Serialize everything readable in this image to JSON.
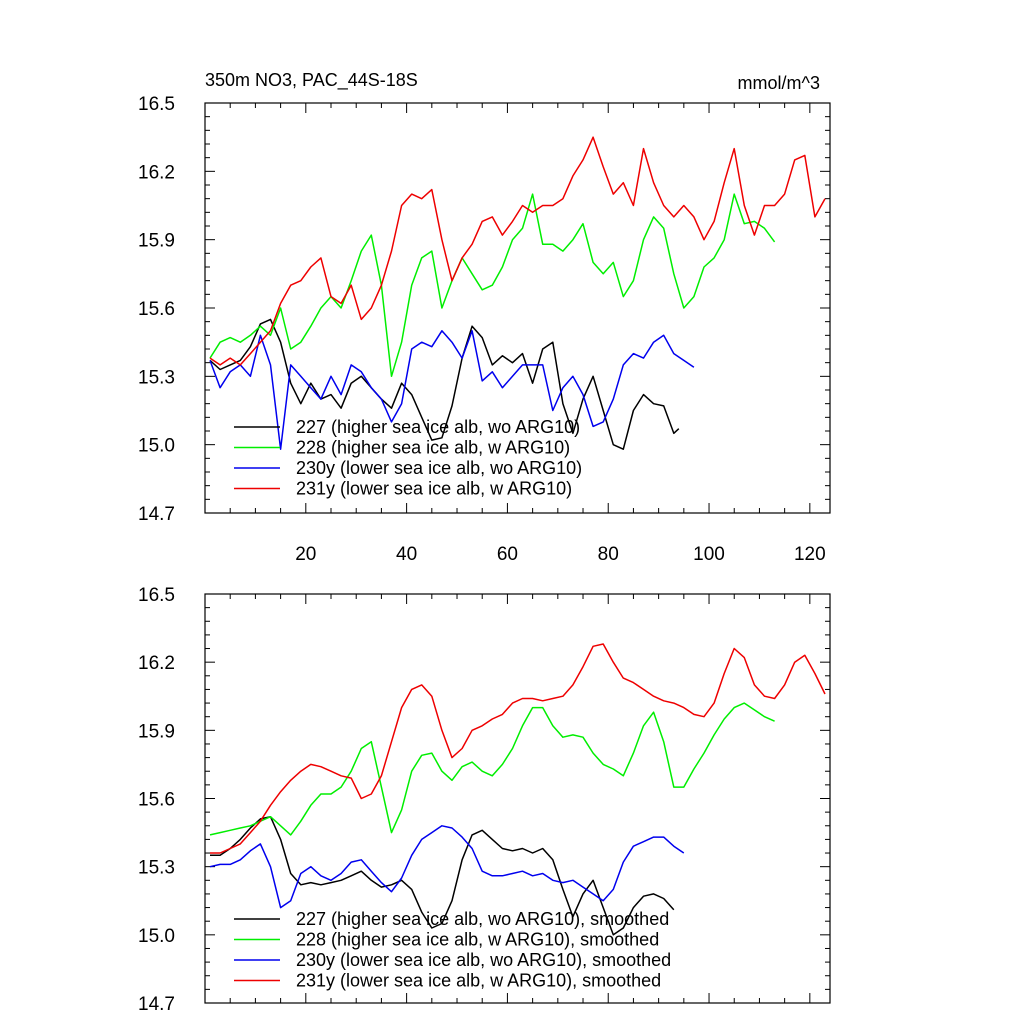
{
  "chart_data": [
    {
      "type": "line",
      "title": "350m NO3, PAC_44S-18S",
      "units": "mmol/m^3",
      "xlim": [
        0,
        124
      ],
      "ylim": [
        14.7,
        16.5
      ],
      "yticks": [
        14.7,
        15.0,
        15.3,
        15.6,
        15.9,
        16.2,
        16.5
      ],
      "xticks": [
        20,
        40,
        60,
        80,
        100,
        120
      ],
      "xticks_labeled": true,
      "legend_position": "bottom-left",
      "series": [
        {
          "name": "227 (higher sea ice alb, wo ARG10)",
          "color": "#000000",
          "x": [
            1,
            3,
            5,
            7,
            9,
            11,
            13,
            15,
            17,
            19,
            21,
            23,
            25,
            27,
            29,
            31,
            33,
            35,
            37,
            39,
            41,
            43,
            45,
            47,
            49,
            51,
            53,
            55,
            57,
            59,
            61,
            63,
            65,
            67,
            69,
            71,
            73,
            75,
            77,
            79,
            81,
            83,
            85,
            87,
            89,
            91,
            93,
            94
          ],
          "values": [
            15.37,
            15.33,
            15.35,
            15.37,
            15.43,
            15.53,
            15.55,
            15.45,
            15.27,
            15.18,
            15.27,
            15.2,
            15.22,
            15.16,
            15.27,
            15.3,
            15.25,
            15.2,
            15.16,
            15.27,
            15.22,
            15.12,
            15.02,
            15.03,
            15.17,
            15.38,
            15.52,
            15.47,
            15.35,
            15.39,
            15.36,
            15.4,
            15.27,
            15.42,
            15.45,
            15.18,
            15.05,
            15.2,
            15.3,
            15.15,
            15.0,
            14.98,
            15.15,
            15.22,
            15.18,
            15.17,
            15.05,
            15.07
          ]
        },
        {
          "name": "228 (higher sea ice alb, w ARG10)",
          "color": "#00ee00",
          "x": [
            1,
            3,
            5,
            7,
            9,
            11,
            13,
            15,
            17,
            19,
            21,
            23,
            25,
            27,
            29,
            31,
            33,
            35,
            37,
            39,
            41,
            43,
            45,
            47,
            49,
            51,
            53,
            55,
            57,
            59,
            61,
            63,
            65,
            67,
            69,
            71,
            73,
            75,
            77,
            79,
            81,
            83,
            85,
            87,
            89,
            91,
            93,
            95,
            97,
            99,
            101,
            103,
            105,
            107,
            109,
            111,
            113
          ],
          "values": [
            15.38,
            15.45,
            15.47,
            15.45,
            15.48,
            15.52,
            15.48,
            15.6,
            15.42,
            15.45,
            15.52,
            15.6,
            15.65,
            15.6,
            15.72,
            15.85,
            15.92,
            15.7,
            15.3,
            15.45,
            15.7,
            15.82,
            15.85,
            15.6,
            15.72,
            15.82,
            15.75,
            15.68,
            15.7,
            15.78,
            15.9,
            15.95,
            16.1,
            15.88,
            15.88,
            15.85,
            15.9,
            15.97,
            15.8,
            15.75,
            15.8,
            15.65,
            15.72,
            15.9,
            16.0,
            15.95,
            15.75,
            15.6,
            15.65,
            15.78,
            15.82,
            15.9,
            16.1,
            15.97,
            15.98,
            15.95,
            15.89
          ]
        },
        {
          "name": "230y (lower sea ice alb, wo ARG10)",
          "color": "#0000ee",
          "x": [
            1,
            3,
            5,
            7,
            9,
            11,
            13,
            15,
            17,
            19,
            21,
            23,
            25,
            27,
            29,
            31,
            33,
            35,
            37,
            39,
            41,
            43,
            45,
            47,
            49,
            51,
            53,
            55,
            57,
            59,
            61,
            63,
            65,
            67,
            69,
            71,
            73,
            75,
            77,
            79,
            81,
            83,
            85,
            87,
            89,
            91,
            93,
            95,
            97
          ],
          "values": [
            15.37,
            15.25,
            15.32,
            15.35,
            15.3,
            15.48,
            15.35,
            14.98,
            15.35,
            15.3,
            15.25,
            15.2,
            15.3,
            15.22,
            15.35,
            15.32,
            15.25,
            15.2,
            15.1,
            15.18,
            15.42,
            15.45,
            15.43,
            15.5,
            15.45,
            15.38,
            15.5,
            15.28,
            15.32,
            15.25,
            15.3,
            15.35,
            15.35,
            15.35,
            15.15,
            15.25,
            15.3,
            15.22,
            15.08,
            15.1,
            15.2,
            15.35,
            15.4,
            15.38,
            15.45,
            15.48,
            15.4,
            15.37,
            15.34
          ]
        },
        {
          "name": "231y (lower sea ice alb, w ARG10)",
          "color": "#ee0000",
          "x": [
            1,
            3,
            5,
            7,
            9,
            11,
            13,
            15,
            17,
            19,
            21,
            23,
            25,
            27,
            29,
            31,
            33,
            35,
            37,
            39,
            41,
            43,
            45,
            47,
            49,
            51,
            53,
            55,
            57,
            59,
            61,
            63,
            65,
            67,
            69,
            71,
            73,
            75,
            77,
            79,
            81,
            83,
            85,
            87,
            89,
            91,
            93,
            95,
            97,
            99,
            101,
            103,
            105,
            107,
            109,
            111,
            113,
            115,
            117,
            119,
            121,
            123
          ],
          "values": [
            15.38,
            15.35,
            15.38,
            15.35,
            15.4,
            15.45,
            15.5,
            15.62,
            15.7,
            15.72,
            15.78,
            15.82,
            15.65,
            15.62,
            15.7,
            15.55,
            15.6,
            15.7,
            15.85,
            16.05,
            16.1,
            16.08,
            16.12,
            15.9,
            15.72,
            15.82,
            15.88,
            15.98,
            16.0,
            15.92,
            15.98,
            16.05,
            16.02,
            16.05,
            16.05,
            16.08,
            16.18,
            16.25,
            16.35,
            16.22,
            16.1,
            16.15,
            16.05,
            16.3,
            16.15,
            16.05,
            16.0,
            16.05,
            16.0,
            15.9,
            15.98,
            16.15,
            16.3,
            16.05,
            15.92,
            16.05,
            16.05,
            16.1,
            16.25,
            16.27,
            16.0,
            16.08
          ]
        }
      ]
    },
    {
      "type": "line",
      "xlim": [
        0,
        124
      ],
      "ylim": [
        14.7,
        16.5
      ],
      "yticks": [
        14.7,
        15.0,
        15.3,
        15.6,
        15.9,
        16.2,
        16.5
      ],
      "xticks": [
        20,
        40,
        60,
        80,
        100,
        120
      ],
      "xticks_labeled": false,
      "legend_position": "bottom-left",
      "series": [
        {
          "name": "227 (higher sea ice alb, wo ARG10), smoothed",
          "color": "#000000",
          "x": [
            1,
            3,
            5,
            7,
            9,
            11,
            13,
            15,
            17,
            19,
            21,
            23,
            25,
            27,
            29,
            31,
            33,
            35,
            37,
            39,
            41,
            43,
            45,
            47,
            49,
            51,
            53,
            55,
            57,
            59,
            61,
            63,
            65,
            67,
            69,
            71,
            73,
            75,
            77,
            79,
            81,
            83,
            85,
            87,
            89,
            91,
            93
          ],
          "values": [
            15.35,
            15.35,
            15.38,
            15.42,
            15.47,
            15.51,
            15.52,
            15.42,
            15.27,
            15.22,
            15.23,
            15.22,
            15.23,
            15.24,
            15.26,
            15.28,
            15.24,
            15.21,
            15.22,
            15.24,
            15.2,
            15.1,
            15.03,
            15.05,
            15.15,
            15.33,
            15.44,
            15.46,
            15.42,
            15.38,
            15.37,
            15.38,
            15.36,
            15.38,
            15.33,
            15.2,
            15.08,
            15.18,
            15.24,
            15.12,
            15.0,
            15.03,
            15.12,
            15.17,
            15.18,
            15.16,
            15.11
          ]
        },
        {
          "name": "228 (higher sea ice alb, w ARG10), smoothed",
          "color": "#00ee00",
          "x": [
            1,
            3,
            5,
            7,
            9,
            11,
            13,
            15,
            17,
            19,
            21,
            23,
            25,
            27,
            29,
            31,
            33,
            35,
            37,
            39,
            41,
            43,
            45,
            47,
            49,
            51,
            53,
            55,
            57,
            59,
            61,
            63,
            65,
            67,
            69,
            71,
            73,
            75,
            77,
            79,
            81,
            83,
            85,
            87,
            89,
            91,
            93,
            95,
            97,
            99,
            101,
            103,
            105,
            107,
            109,
            111,
            113
          ],
          "values": [
            15.44,
            15.45,
            15.46,
            15.47,
            15.48,
            15.5,
            15.52,
            15.48,
            15.44,
            15.5,
            15.57,
            15.62,
            15.62,
            15.65,
            15.72,
            15.82,
            15.85,
            15.65,
            15.45,
            15.55,
            15.72,
            15.79,
            15.8,
            15.72,
            15.68,
            15.74,
            15.76,
            15.72,
            15.7,
            15.75,
            15.82,
            15.92,
            16.0,
            16.0,
            15.92,
            15.87,
            15.88,
            15.87,
            15.8,
            15.75,
            15.73,
            15.7,
            15.8,
            15.92,
            15.98,
            15.85,
            15.65,
            15.65,
            15.73,
            15.8,
            15.88,
            15.95,
            16.0,
            16.02,
            15.99,
            15.96,
            15.94
          ]
        },
        {
          "name": "230y (lower sea ice alb, wo ARG10), smoothed",
          "color": "#0000ee",
          "x": [
            1,
            3,
            5,
            7,
            9,
            11,
            13,
            15,
            17,
            19,
            21,
            23,
            25,
            27,
            29,
            31,
            33,
            35,
            37,
            39,
            41,
            43,
            45,
            47,
            49,
            51,
            53,
            55,
            57,
            59,
            61,
            63,
            65,
            67,
            69,
            71,
            73,
            75,
            77,
            79,
            81,
            83,
            85,
            87,
            89,
            91,
            93,
            95
          ],
          "values": [
            15.3,
            15.31,
            15.31,
            15.33,
            15.37,
            15.4,
            15.3,
            15.12,
            15.15,
            15.27,
            15.3,
            15.26,
            15.24,
            15.27,
            15.32,
            15.33,
            15.28,
            15.23,
            15.19,
            15.25,
            15.35,
            15.42,
            15.45,
            15.48,
            15.47,
            15.43,
            15.38,
            15.28,
            15.26,
            15.26,
            15.27,
            15.28,
            15.26,
            15.27,
            15.24,
            15.23,
            15.24,
            15.21,
            15.18,
            15.15,
            15.2,
            15.32,
            15.39,
            15.41,
            15.43,
            15.43,
            15.39,
            15.36
          ]
        },
        {
          "name": "231y (lower sea ice alb, w ARG10), smoothed",
          "color": "#ee0000",
          "x": [
            1,
            3,
            5,
            7,
            9,
            11,
            13,
            15,
            17,
            19,
            21,
            23,
            25,
            27,
            29,
            31,
            33,
            35,
            37,
            39,
            41,
            43,
            45,
            47,
            49,
            51,
            53,
            55,
            57,
            59,
            61,
            63,
            65,
            67,
            69,
            71,
            73,
            75,
            77,
            79,
            81,
            83,
            85,
            87,
            89,
            91,
            93,
            95,
            97,
            99,
            101,
            103,
            105,
            107,
            109,
            111,
            113,
            115,
            117,
            119,
            121,
            123
          ],
          "values": [
            15.36,
            15.36,
            15.38,
            15.4,
            15.45,
            15.5,
            15.57,
            15.63,
            15.68,
            15.72,
            15.75,
            15.74,
            15.72,
            15.7,
            15.69,
            15.6,
            15.62,
            15.7,
            15.85,
            16.0,
            16.08,
            16.1,
            16.05,
            15.9,
            15.78,
            15.82,
            15.9,
            15.92,
            15.95,
            15.97,
            16.02,
            16.04,
            16.04,
            16.03,
            16.04,
            16.05,
            16.1,
            16.18,
            16.27,
            16.28,
            16.2,
            16.13,
            16.11,
            16.08,
            16.05,
            16.03,
            16.02,
            16.0,
            15.97,
            15.96,
            16.02,
            16.15,
            16.26,
            16.22,
            16.1,
            16.05,
            16.04,
            16.1,
            16.2,
            16.23,
            16.15,
            16.06
          ]
        }
      ]
    }
  ]
}
